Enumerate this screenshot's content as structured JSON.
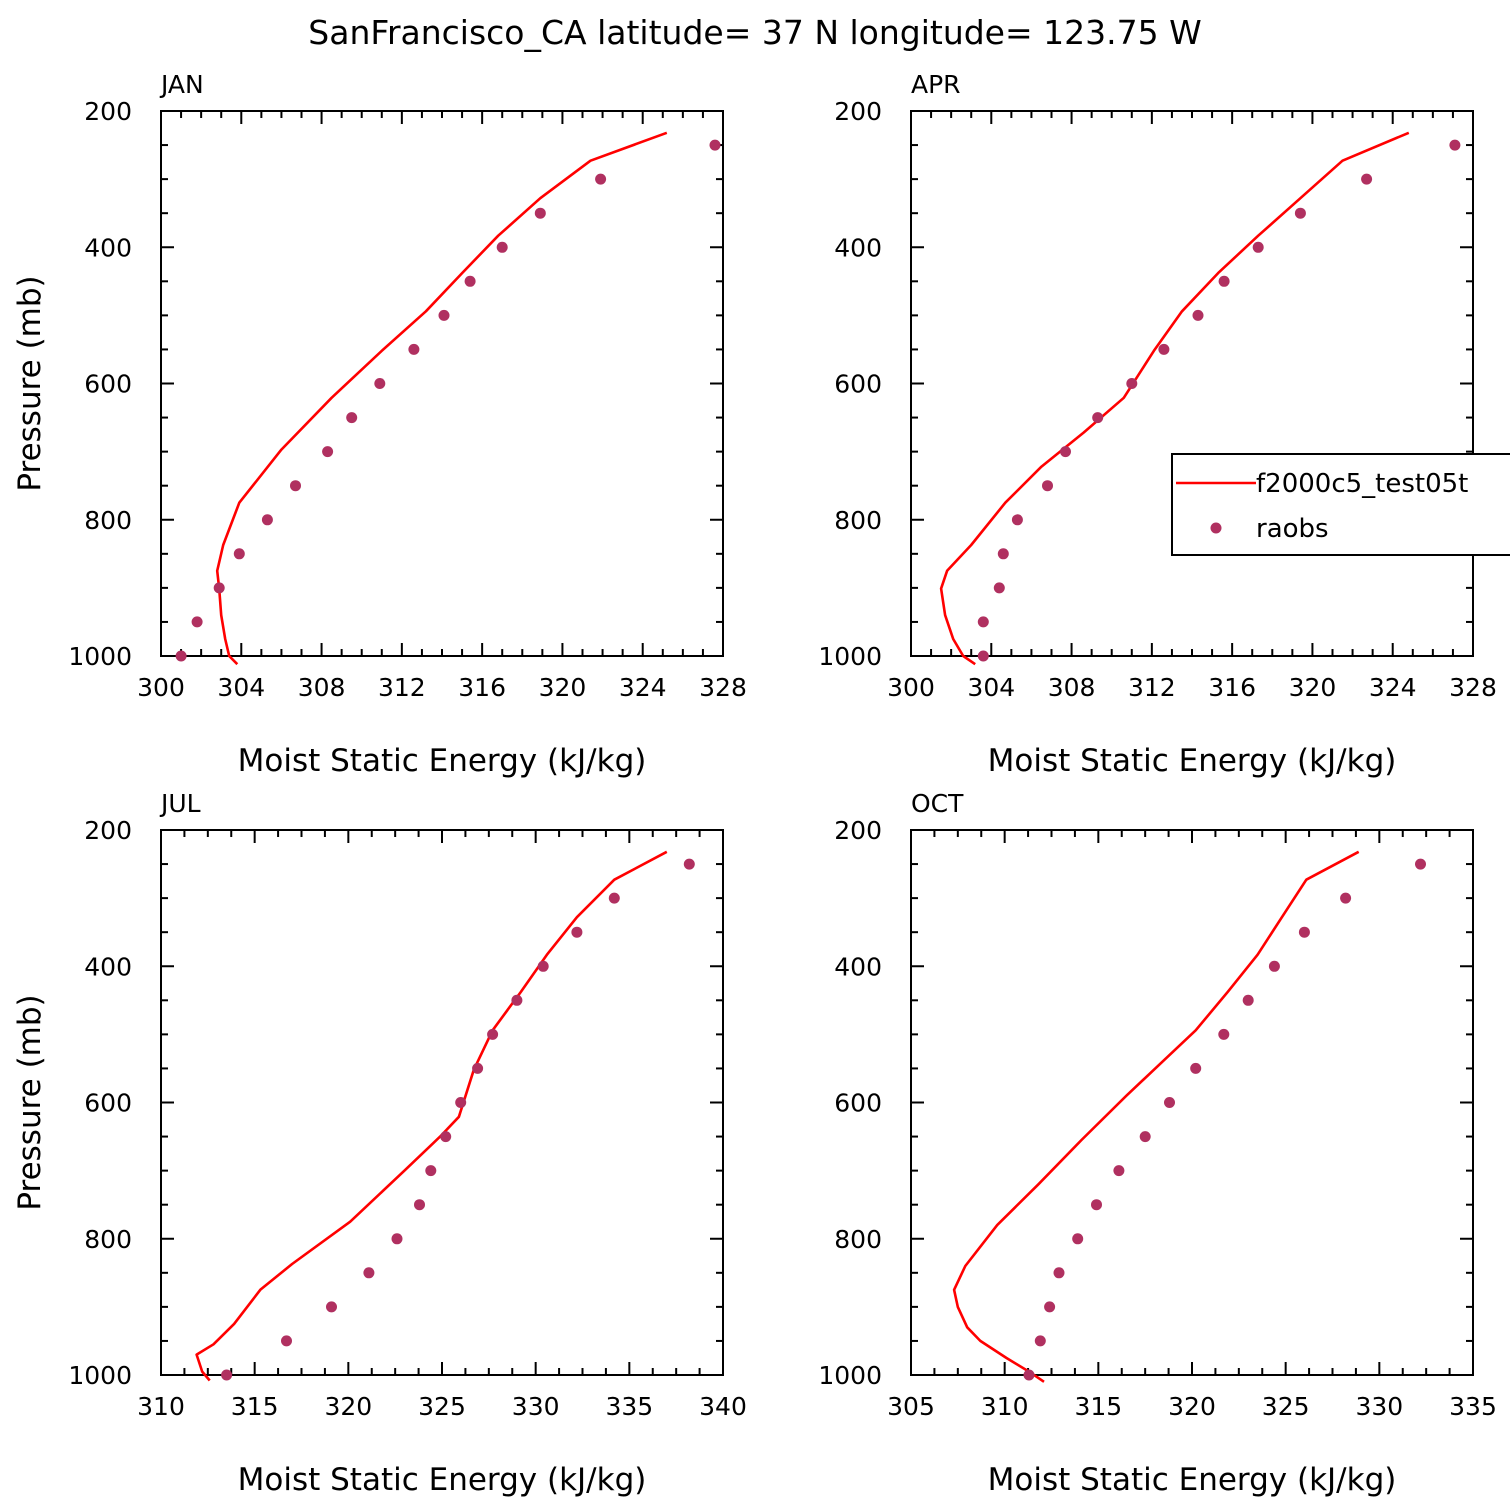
{
  "title": "SanFrancisco_CA  latitude= 37 N longitude= 123.75 W",
  "legend": {
    "items": [
      {
        "label": "f2000c5_test05t",
        "type": "line",
        "color": "#ff0000"
      },
      {
        "label": "raobs",
        "type": "marker",
        "color": "#b03060"
      }
    ]
  },
  "chart_data": [
    {
      "type": "line+scatter",
      "panel": "JAN",
      "xlabel": "Moist Static Energy (kJ/kg)",
      "ylabel": "Pressure (mb)",
      "xlim": [
        300,
        328
      ],
      "ylim": [
        1000,
        200
      ],
      "xticks": [
        300,
        304,
        308,
        312,
        316,
        320,
        324,
        328
      ],
      "yticks": [
        200,
        400,
        600,
        800,
        1000
      ],
      "model": {
        "name": "f2000c5_test05t",
        "x": [
          325.2,
          321.4,
          318.9,
          316.8,
          315.0,
          313.2,
          311.0,
          308.5,
          306.0,
          303.9,
          303.1,
          302.8,
          302.9,
          303.0,
          303.2,
          303.4,
          303.8
        ],
        "y": [
          232,
          273,
          328,
          383,
          438,
          494,
          552,
          621,
          697,
          775,
          837,
          875,
          901,
          940,
          975,
          1000,
          1012
        ]
      },
      "obs": {
        "name": "raobs",
        "x": [
          327.6,
          321.9,
          318.9,
          317.0,
          315.4,
          314.1,
          312.6,
          310.9,
          309.5,
          308.3,
          306.7,
          305.3,
          303.9,
          302.9,
          301.8,
          301.0
        ],
        "y": [
          250,
          300,
          350,
          400,
          450,
          500,
          550,
          600,
          650,
          700,
          750,
          800,
          850,
          900,
          950,
          1000
        ]
      }
    },
    {
      "type": "line+scatter",
      "panel": "APR",
      "xlabel": "Moist Static Energy (kJ/kg)",
      "ylabel": "",
      "xlim": [
        300,
        328
      ],
      "ylim": [
        1000,
        200
      ],
      "xticks": [
        300,
        304,
        308,
        312,
        316,
        320,
        324,
        328
      ],
      "yticks": [
        200,
        400,
        600,
        800,
        1000
      ],
      "model": {
        "name": "f2000c5_test05t",
        "x": [
          324.8,
          321.5,
          319.4,
          317.3,
          315.3,
          313.5,
          312.1,
          310.6,
          308.6,
          306.5,
          304.7,
          303.0,
          301.8,
          301.5,
          301.7,
          302.1,
          302.6,
          303.2
        ],
        "y": [
          232,
          273,
          328,
          383,
          438,
          494,
          552,
          621,
          672,
          722,
          775,
          837,
          875,
          901,
          940,
          975,
          1000,
          1012
        ]
      },
      "obs": {
        "name": "raobs",
        "x": [
          327.1,
          322.7,
          319.4,
          317.3,
          315.6,
          314.3,
          312.6,
          311.0,
          309.3,
          307.7,
          306.8,
          305.3,
          304.6,
          304.4,
          303.6,
          303.6
        ],
        "y": [
          250,
          300,
          350,
          400,
          450,
          500,
          550,
          600,
          650,
          700,
          750,
          800,
          850,
          900,
          950,
          1000
        ]
      }
    },
    {
      "type": "line+scatter",
      "panel": "JUL",
      "xlabel": "Moist Static Energy (kJ/kg)",
      "ylabel": "Pressure (mb)",
      "xlim": [
        310,
        340
      ],
      "ylim": [
        1000,
        200
      ],
      "xticks": [
        310,
        315,
        320,
        325,
        330,
        335,
        340
      ],
      "yticks": [
        200,
        400,
        600,
        800,
        1000
      ],
      "model": {
        "name": "f2000c5_test05t",
        "x": [
          337.0,
          334.2,
          332.2,
          330.6,
          329.2,
          327.7,
          326.7,
          325.9,
          324.9,
          323.0,
          320.1,
          317.0,
          315.3,
          313.9,
          312.8,
          311.9,
          312.2,
          312.6
        ],
        "y": [
          232,
          273,
          328,
          383,
          438,
          494,
          552,
          621,
          650,
          700,
          775,
          837,
          875,
          925,
          955,
          970,
          995,
          1008
        ]
      },
      "obs": {
        "name": "raobs",
        "x": [
          338.2,
          334.2,
          332.2,
          330.4,
          329.0,
          327.7,
          326.9,
          326.0,
          325.2,
          324.4,
          323.8,
          322.6,
          321.1,
          319.1,
          316.7,
          313.5
        ],
        "y": [
          250,
          300,
          350,
          400,
          450,
          500,
          550,
          600,
          650,
          700,
          750,
          800,
          850,
          900,
          950,
          1000
        ]
      }
    },
    {
      "type": "line+scatter",
      "panel": "OCT",
      "xlabel": "Moist Static Energy (kJ/kg)",
      "ylabel": "",
      "xlim": [
        305,
        335
      ],
      "ylim": [
        1000,
        200
      ],
      "xticks": [
        305,
        310,
        315,
        320,
        325,
        330,
        335
      ],
      "yticks": [
        200,
        400,
        600,
        800,
        1000
      ],
      "model": {
        "name": "f2000c5_test05t",
        "x": [
          328.9,
          326.1,
          324.8,
          323.5,
          321.9,
          320.2,
          318.5,
          316.5,
          314.1,
          311.8,
          309.6,
          307.9,
          307.3,
          307.5,
          308.0,
          308.7,
          310.1,
          311.3,
          312.1
        ],
        "y": [
          232,
          273,
          328,
          383,
          438,
          494,
          538,
          590,
          655,
          720,
          780,
          840,
          875,
          900,
          930,
          950,
          975,
          995,
          1010
        ]
      },
      "obs": {
        "name": "raobs",
        "x": [
          332.2,
          328.2,
          326.0,
          324.4,
          323.0,
          321.7,
          320.2,
          318.8,
          317.5,
          316.1,
          314.9,
          313.9,
          312.9,
          312.4,
          311.9,
          311.3
        ],
        "y": [
          250,
          300,
          350,
          400,
          450,
          500,
          550,
          600,
          650,
          700,
          750,
          800,
          850,
          900,
          950,
          1000
        ]
      }
    }
  ]
}
